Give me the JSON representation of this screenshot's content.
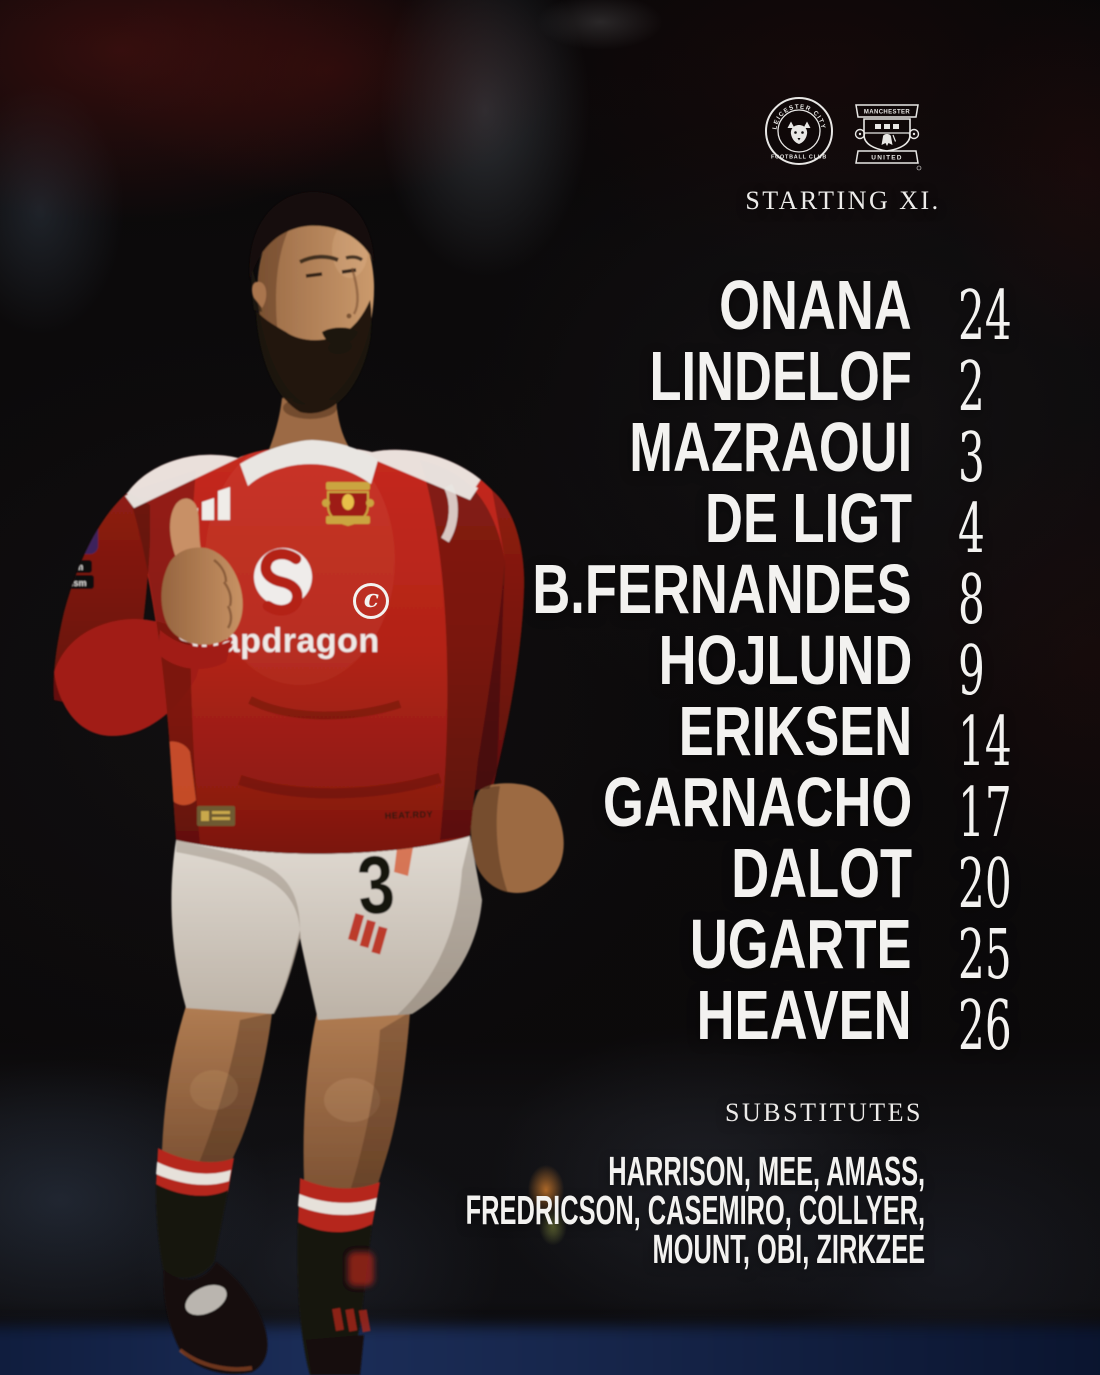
{
  "header": {
    "home_badge": {
      "name": "Leicester City",
      "ring_top": "LEICESTER CITY",
      "ring_bottom": "FOOTBALL CLUB"
    },
    "away_badge": {
      "name": "Manchester United",
      "banner_top": "MANCHESTER",
      "banner_bottom": "UNITED"
    },
    "title": "STARTING XI."
  },
  "lineup": {
    "captain_mark": "c",
    "players": [
      {
        "name": "ONANA",
        "number": "24",
        "captain": false
      },
      {
        "name": "LINDELOF",
        "number": "2",
        "captain": false
      },
      {
        "name": "MAZRAOUI",
        "number": "3",
        "captain": false
      },
      {
        "name": "DE LIGT",
        "number": "4",
        "captain": false
      },
      {
        "name": "B.FERNANDES",
        "number": "8",
        "captain": true
      },
      {
        "name": "HOJLUND",
        "number": "9",
        "captain": false
      },
      {
        "name": "ERIKSEN",
        "number": "14",
        "captain": false
      },
      {
        "name": "GARNACHO",
        "number": "17",
        "captain": false
      },
      {
        "name": "DALOT",
        "number": "20",
        "captain": false
      },
      {
        "name": "UGARTE",
        "number": "25",
        "captain": false
      },
      {
        "name": "HEAVEN",
        "number": "26",
        "captain": false
      }
    ]
  },
  "substitutes": {
    "title": "SUBSTITUTES",
    "lines": [
      "HARRISON, MEE, AMASS,",
      "FREDRICSON, CASEMIRO, COLLYER,",
      "MOUNT, OBI, ZIRKZEE"
    ]
  },
  "kit": {
    "sponsor": "Snapdragon",
    "shorts_number": "3",
    "sleeve_patch_line1": "room",
    "sleeve_patch_line2": "racism",
    "hem_label": "HEAT.RDY"
  },
  "colors": {
    "jersey_red": "#b22317",
    "accent_orange": "#d4562e",
    "shorts_white": "#ddd6cd",
    "sock_black": "#171210",
    "board_navy": "#16254a",
    "badge_white": "#e8e7e5",
    "text_white": "#f3f2f0"
  }
}
